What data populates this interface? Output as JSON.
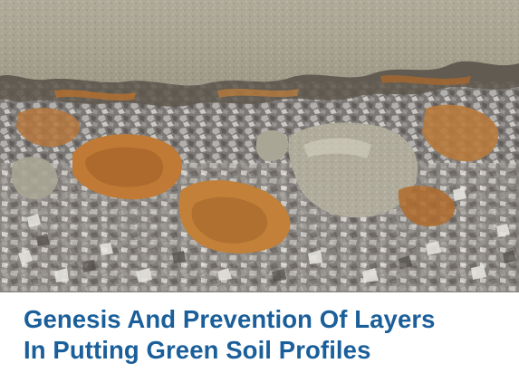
{
  "article": {
    "title_line_1": "Genesis And Prevention Of Layers",
    "title_line_2": "In Putting Green Soil Profiles"
  },
  "photo": {
    "subject": "soil-profile-layers",
    "colors": {
      "sand": "#a39e8c",
      "sand_dark": "#7d7868",
      "rust": "#c07a35",
      "gravel": "#9a9896",
      "title": "#1b5f9a"
    }
  }
}
